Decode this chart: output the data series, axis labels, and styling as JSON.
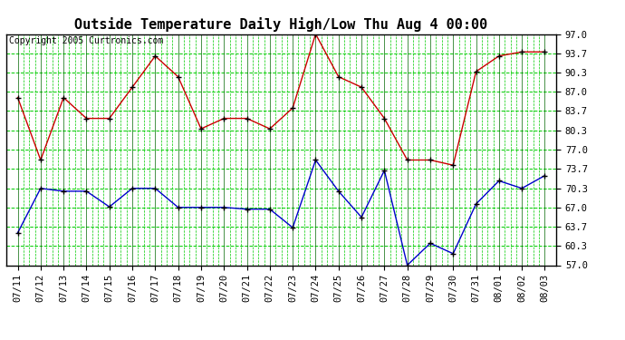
{
  "title": "Outside Temperature Daily High/Low Thu Aug 4 00:00",
  "copyright": "Copyright 2005 Curtronics.com",
  "x_labels": [
    "07/11",
    "07/12",
    "07/13",
    "07/14",
    "07/15",
    "07/16",
    "07/17",
    "07/18",
    "07/19",
    "07/20",
    "07/21",
    "07/22",
    "07/23",
    "07/24",
    "07/25",
    "07/26",
    "07/27",
    "07/28",
    "07/29",
    "07/30",
    "07/31",
    "08/01",
    "08/02",
    "08/03"
  ],
  "high_values": [
    86.0,
    75.2,
    86.0,
    82.4,
    82.4,
    87.8,
    93.2,
    89.6,
    80.6,
    82.4,
    82.4,
    80.6,
    84.2,
    97.0,
    89.6,
    87.8,
    82.4,
    75.2,
    75.2,
    74.3,
    90.5,
    93.2,
    93.9,
    93.9
  ],
  "low_values": [
    62.6,
    70.3,
    69.8,
    69.8,
    67.1,
    70.3,
    70.3,
    67.0,
    67.0,
    67.0,
    66.7,
    66.7,
    63.5,
    75.2,
    69.8,
    65.3,
    73.4,
    57.0,
    60.8,
    59.0,
    67.6,
    71.6,
    70.3,
    72.5
  ],
  "high_color": "#cc0000",
  "low_color": "#0000cc",
  "marker": "+",
  "marker_color": "#000000",
  "bg_color": "#ffffff",
  "plot_bg_color": "#ffffff",
  "grid_h_color": "#00cc00",
  "grid_v_color": "#006600",
  "title_fontsize": 11,
  "copyright_fontsize": 7,
  "tick_fontsize": 7.5,
  "ytick_labels": [
    "57.0",
    "60.3",
    "63.7",
    "67.0",
    "70.3",
    "73.7",
    "77.0",
    "80.3",
    "83.7",
    "87.0",
    "90.3",
    "93.7",
    "97.0"
  ],
  "ytick_values": [
    57.0,
    60.3,
    63.7,
    67.0,
    70.3,
    73.7,
    77.0,
    80.3,
    83.7,
    87.0,
    90.3,
    93.7,
    97.0
  ],
  "ymin": 57.0,
  "ymax": 97.0
}
